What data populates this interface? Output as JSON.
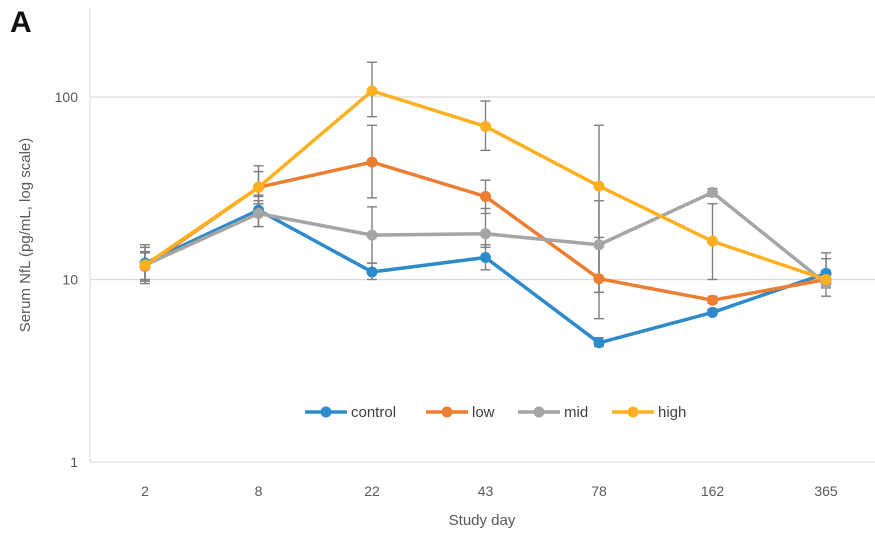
{
  "panel_label": "A",
  "chart_data": {
    "type": "line",
    "title": "",
    "xlabel": "Study day",
    "ylabel": "Serum NfL (pg/mL, log scale)",
    "y_scale": "log",
    "ylim": [
      1,
      300
    ],
    "y_ticks": [
      "1",
      "10",
      "100"
    ],
    "grid": "horizontal",
    "legend_position": "bottom-center (inside plot)",
    "categories": [
      "2",
      "8",
      "22",
      "43",
      "78",
      "162",
      "365"
    ],
    "series": [
      {
        "name": "control",
        "color": "#2E8BC9",
        "values": [
          12.3,
          24.0,
          11.0,
          13.2,
          4.5,
          6.6,
          10.8
        ],
        "err_low": [
          10.0,
          19.5,
          10.0,
          11.3,
          4.3,
          6.4,
          9.0
        ],
        "err_high": [
          15.0,
          28.5,
          12.3,
          15.5,
          4.8,
          6.9,
          13.0
        ]
      },
      {
        "name": "low",
        "color": "#ED7D31",
        "values": [
          11.8,
          32.0,
          44.0,
          28.5,
          10.1,
          7.7,
          10.0
        ],
        "err_low": [
          9.8,
          26.0,
          28.0,
          23.0,
          6.1,
          7.4,
          9.0
        ],
        "err_high": [
          14.0,
          39.0,
          70.0,
          35.0,
          17.0,
          8.1,
          11.2
        ]
      },
      {
        "name": "mid",
        "color": "#A5A5A5",
        "values": [
          12.0,
          23.0,
          17.5,
          17.8,
          15.5,
          30.0,
          9.5
        ],
        "err_low": [
          9.5,
          19.5,
          12.3,
          15.0,
          8.5,
          28.5,
          8.1
        ],
        "err_high": [
          15.5,
          27.0,
          25.0,
          24.5,
          27.0,
          31.5,
          11.0
        ]
      },
      {
        "name": "high",
        "color": "#FFB020",
        "values": [
          12.0,
          32.0,
          108.0,
          69.0,
          32.5,
          16.2,
          10.0
        ],
        "err_low": [
          9.8,
          29.0,
          78.0,
          51.0,
          8.5,
          10.0,
          9.0
        ],
        "err_high": [
          14.2,
          42.0,
          155.0,
          95.0,
          70.0,
          26.0,
          14.0
        ]
      }
    ]
  }
}
